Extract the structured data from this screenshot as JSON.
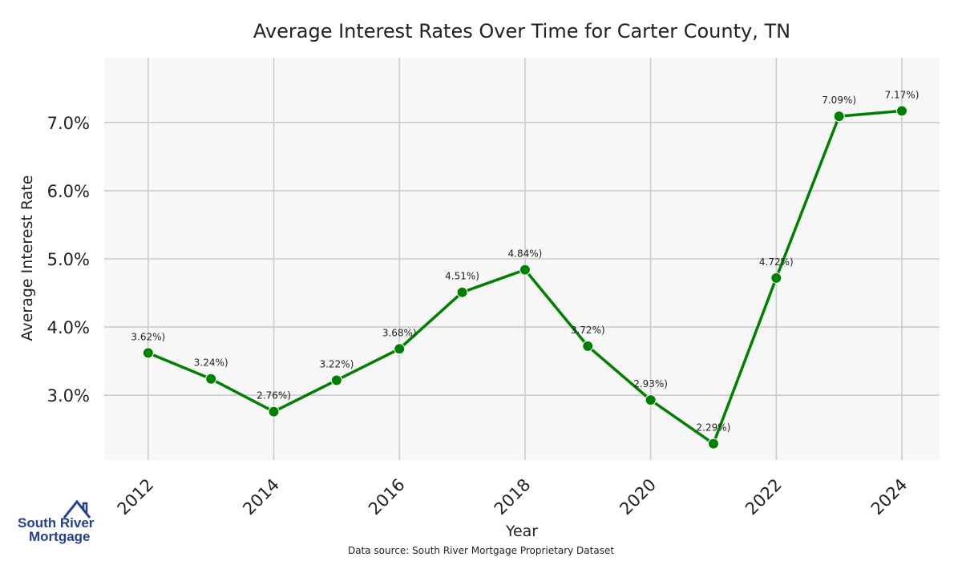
{
  "chart_data": {
    "type": "line",
    "title": "Average Interest Rates Over Time for Carter County, TN",
    "xlabel": "Year",
    "ylabel": "Average Interest Rate",
    "x": [
      2012,
      2013,
      2014,
      2015,
      2016,
      2017,
      2018,
      2019,
      2020,
      2021,
      2022,
      2023,
      2024
    ],
    "series": [
      {
        "values": [
          3.62,
          3.24,
          2.76,
          3.22,
          3.68,
          4.51,
          4.84,
          3.72,
          2.93,
          2.29,
          4.72,
          7.09,
          7.17
        ],
        "labels": [
          "3.62%)",
          "3.24%)",
          "2.76%)",
          "3.22%)",
          "3.68%)",
          "4.51%)",
          "4.84%)",
          "3.72%)",
          "2.93%)",
          "2.29%)",
          "4.72%)",
          "7.09%)",
          "7.17%)"
        ],
        "color": "#008000"
      }
    ],
    "xticks": [
      2012,
      2014,
      2016,
      2018,
      2020,
      2022,
      2024
    ],
    "xtick_labels": [
      "2012",
      "2014",
      "2016",
      "2018",
      "2020",
      "2022",
      "2024"
    ],
    "yticks": [
      3.0,
      4.0,
      5.0,
      6.0,
      7.0
    ],
    "ytick_labels": [
      "3.0%",
      "4.0%",
      "5.0%",
      "6.0%",
      "7.0%"
    ],
    "xlim": [
      2011.3,
      2024.6
    ],
    "ylim": [
      2.05,
      7.95
    ],
    "grid": true,
    "background": "#f7f7f7",
    "grid_color": "#cccccc"
  },
  "footer": {
    "source": "Data source: South River Mortgage Proprietary Dataset"
  },
  "logo": {
    "line1": "South River",
    "line2": "Mortgage",
    "color": "#24408e"
  }
}
